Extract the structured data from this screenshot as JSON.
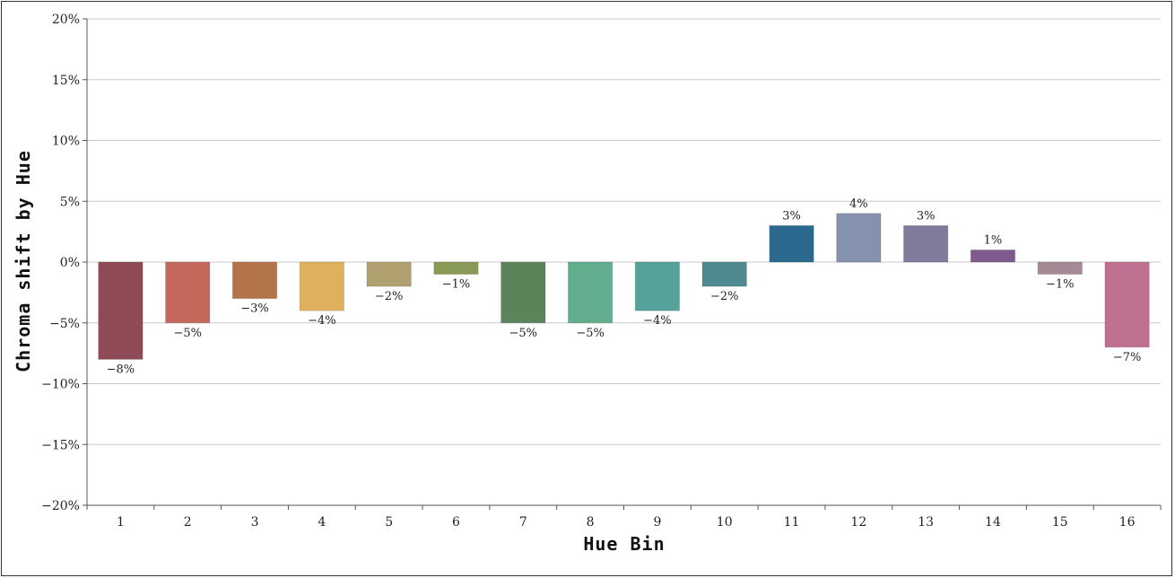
{
  "chart_data": {
    "type": "bar",
    "title": "",
    "xlabel": "Hue Bin",
    "ylabel": "Chroma shift by Hue",
    "ylim": [
      -20,
      20
    ],
    "yticks": [
      20,
      15,
      10,
      5,
      0,
      -5,
      -10,
      -15,
      -20
    ],
    "ytick_labels": [
      "20%",
      "15%",
      "10%",
      "5%",
      "0%",
      "−5%",
      "−10%",
      "−15%",
      "−20%"
    ],
    "grid": true,
    "categories": [
      "1",
      "2",
      "3",
      "4",
      "5",
      "6",
      "7",
      "8",
      "9",
      "10",
      "11",
      "12",
      "13",
      "14",
      "15",
      "16"
    ],
    "values": [
      -8,
      -5,
      -3,
      -4,
      -2,
      -1,
      -5,
      -5,
      -4,
      -2,
      3,
      4,
      3,
      1,
      -1,
      -7
    ],
    "data_labels": [
      "−8%",
      "−5%",
      "−3%",
      "−4%",
      "−2%",
      "−1%",
      "−5%",
      "−5%",
      "−4%",
      "−2%",
      "3%",
      "4%",
      "3%",
      "1%",
      "−1%",
      "−7%"
    ],
    "colors": [
      "#8e4a55",
      "#c4685c",
      "#b47449",
      "#dfb15e",
      "#b1a06f",
      "#899a57",
      "#5c845b",
      "#63ad8f",
      "#55a29a",
      "#4f8a90",
      "#2b6a8e",
      "#8591ad",
      "#807a9b",
      "#7f5a8c",
      "#a58a96",
      "#bf7090"
    ]
  }
}
